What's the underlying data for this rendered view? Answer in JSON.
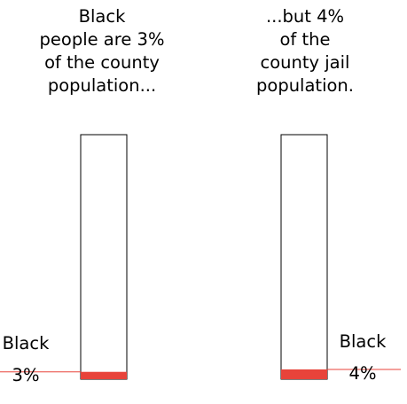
{
  "chart_data": {
    "type": "bar",
    "categories": [
      "county population",
      "county jail population"
    ],
    "values": [
      3,
      4
    ],
    "ylim": [
      0,
      100
    ],
    "captions": [
      "Black\npeople are 3%\nof the county\npopulation...",
      "...but 4%\nof the\ncounty jail\npopulation."
    ],
    "labels": [
      "Black\n3%",
      "Black\n4%"
    ]
  },
  "colors": {
    "accent": "#e8433a",
    "outline": "#000000"
  }
}
